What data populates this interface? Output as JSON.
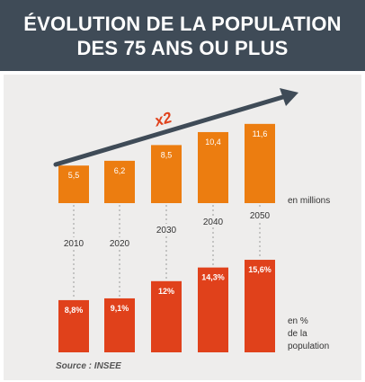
{
  "title_lines": [
    "ÉVOLUTION DE LA POPULATION",
    "DES 75 ANS OU PLUS"
  ],
  "source": "Source : INSEE",
  "trend_label": "x2",
  "colors": {
    "header_bg": "#3f4b57",
    "panel_bg": "#eeedec",
    "top_bar": "#ec7d10",
    "bottom_bar": "#e0411b",
    "arrow": "#3f4b57",
    "trend_label": "#e0411b"
  },
  "chart_data": [
    {
      "type": "bar",
      "categories": [
        "2010",
        "2020",
        "2030",
        "2040",
        "2050"
      ],
      "values": [
        5.5,
        6.2,
        8.5,
        10.4,
        11.6
      ],
      "value_labels": [
        "5,5",
        "6,2",
        "8,5",
        "10,4",
        "11,6"
      ],
      "unit_label": "en millions"
    },
    {
      "type": "bar",
      "categories": [
        "2010",
        "2020",
        "2030",
        "2040",
        "2050"
      ],
      "values": [
        8.8,
        9.1,
        12,
        14.3,
        15.6
      ],
      "value_labels": [
        "8,8%",
        "9,1%",
        "12%",
        "14,3%",
        "15,6%"
      ],
      "unit_label_lines": [
        "en %",
        "de la",
        "population"
      ]
    }
  ]
}
